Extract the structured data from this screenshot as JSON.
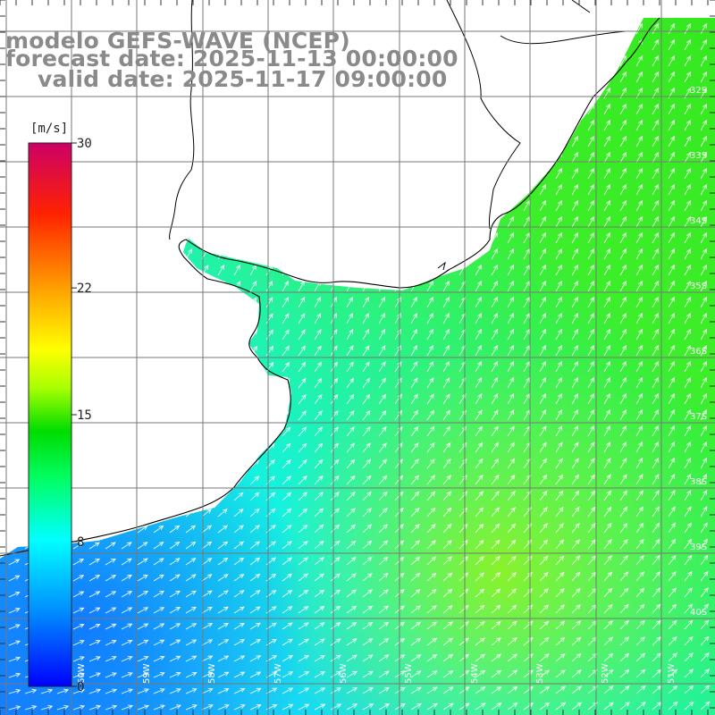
{
  "title": {
    "line1": "modelo GEFS-WAVE (NCEP)",
    "line2": "forecast date: 2025-11-13 00:00:00",
    "line3": "valid date: 2025-11-17 09:00:00"
  },
  "colorbar": {
    "unit": "[m/s]",
    "min": 0,
    "max": 30,
    "ticks": [
      "30",
      "22",
      "15",
      "8",
      "0"
    ],
    "tick_values": [
      30,
      22,
      15,
      8,
      0
    ],
    "colors": [
      "#0000ff",
      "#0090ff",
      "#00ffff",
      "#00ff66",
      "#00dd00",
      "#aaff00",
      "#ffff00",
      "#ff9900",
      "#ff2200",
      "#cc0066"
    ]
  },
  "grid": {
    "lat_labels": [
      "32S",
      "33S",
      "34S",
      "35S",
      "36S",
      "37S",
      "38S",
      "39S",
      "40S"
    ],
    "lon_labels": [
      "60W",
      "59W",
      "58W",
      "57W",
      "56W",
      "55W",
      "54W",
      "53W",
      "52W",
      "51W"
    ]
  },
  "colors": {
    "land": "#ffffff",
    "coast": "#000000",
    "grid": "#777777",
    "title": "#8a8a8a"
  }
}
